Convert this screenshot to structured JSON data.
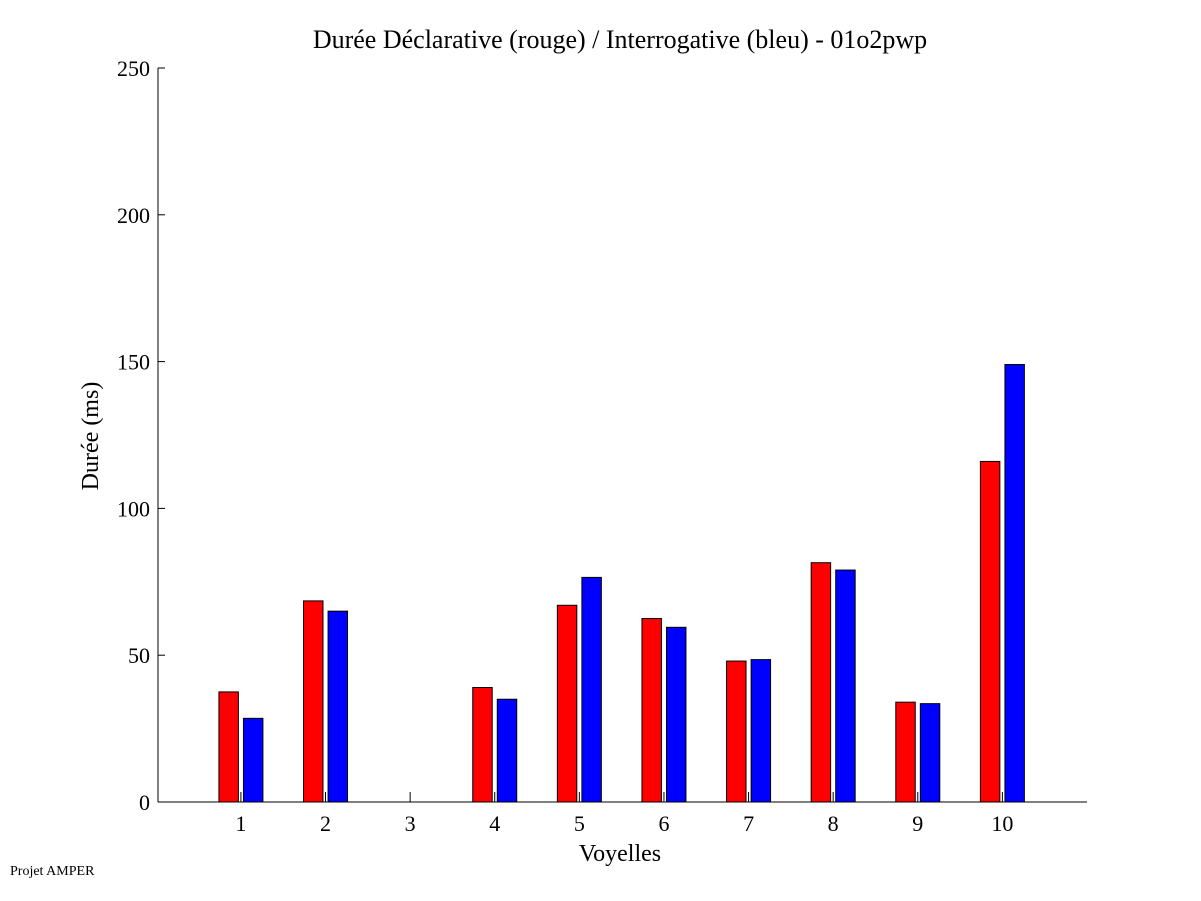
{
  "footer": {
    "credit": "Projet AMPER"
  },
  "chart_data": {
    "type": "bar",
    "title": "Durée Déclarative (rouge) / Interrogative (bleu) - 01o2pwp",
    "xlabel": "Voyelles",
    "ylabel": "Durée (ms)",
    "ylim": [
      0,
      250
    ],
    "yticks": [
      0,
      50,
      100,
      150,
      200,
      250
    ],
    "xlim": [
      0.02,
      11.0
    ],
    "categories": [
      "1",
      "2",
      "3",
      "4",
      "5",
      "6",
      "7",
      "8",
      "9",
      "10"
    ],
    "series": [
      {
        "color": "#ff0000",
        "values": [
          37.5,
          68.5,
          0,
          39,
          67,
          62.5,
          48,
          81.5,
          34,
          116
        ]
      },
      {
        "color": "#0000ff",
        "values": [
          28.5,
          65,
          0,
          35,
          76.5,
          59.5,
          48.5,
          79,
          33.5,
          149
        ]
      }
    ],
    "grid": false,
    "legend": "none"
  }
}
